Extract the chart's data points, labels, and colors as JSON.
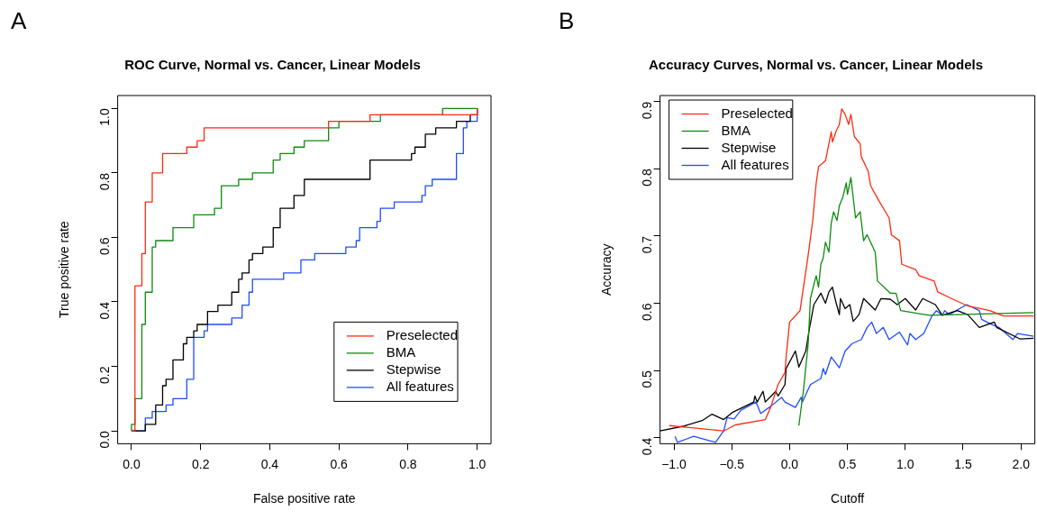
{
  "chart_data": [
    {
      "type": "line",
      "title": "ROC Curve, Normal vs. Cancer, Linear Models",
      "xlabel": "False positive rate",
      "ylabel": "True positive rate",
      "annotations": [
        "A"
      ],
      "xlim": [
        -0.04,
        1.04
      ],
      "ylim": [
        -0.04,
        1.04
      ],
      "xticks": [
        {
          "value": 0,
          "label": "0.0"
        },
        0.2,
        0.4,
        0.6,
        0.8,
        {
          "value": 1,
          "label": "1.0"
        }
      ],
      "yticks": [
        {
          "value": 0,
          "label": "0.0"
        },
        0.2,
        0.4,
        0.6,
        0.8,
        {
          "value": 1,
          "label": "1.0"
        }
      ],
      "grid": false,
      "legend": "bottom right",
      "series": [
        {
          "name": "Preselected",
          "color": "#ff2a12",
          "x": [
            0,
            0.01,
            0.01,
            0.03,
            0.03,
            0.04,
            0.04,
            0.06,
            0.06,
            0.09,
            0.09,
            0.16,
            0.16,
            0.19,
            0.19,
            0.21,
            0.21,
            0.57,
            0.57,
            0.69,
            0.69,
            1.0,
            1.0
          ],
          "values": [
            0,
            0,
            0.45,
            0.45,
            0.55,
            0.55,
            0.71,
            0.71,
            0.8,
            0.8,
            0.86,
            0.86,
            0.88,
            0.88,
            0.9,
            0.9,
            0.94,
            0.94,
            0.96,
            0.96,
            0.98,
            0.98,
            1.0
          ]
        },
        {
          "name": "BMA",
          "color": "#0e8a0e",
          "x": [
            0,
            0,
            0.01,
            0.01,
            0.03,
            0.03,
            0.04,
            0.04,
            0.06,
            0.06,
            0.07,
            0.07,
            0.12,
            0.12,
            0.18,
            0.18,
            0.24,
            0.24,
            0.26,
            0.26,
            0.31,
            0.31,
            0.35,
            0.35,
            0.41,
            0.41,
            0.43,
            0.43,
            0.47,
            0.47,
            0.5,
            0.5,
            0.57,
            0.57,
            0.6,
            0.6,
            0.72,
            0.72,
            0.9,
            0.9,
            1.0
          ],
          "values": [
            0,
            0.02,
            0.02,
            0.1,
            0.1,
            0.33,
            0.33,
            0.43,
            0.43,
            0.57,
            0.57,
            0.59,
            0.59,
            0.63,
            0.63,
            0.67,
            0.67,
            0.69,
            0.69,
            0.76,
            0.76,
            0.78,
            0.78,
            0.8,
            0.8,
            0.84,
            0.84,
            0.86,
            0.86,
            0.88,
            0.88,
            0.9,
            0.9,
            0.94,
            0.94,
            0.96,
            0.96,
            0.98,
            0.98,
            1.0,
            1.0
          ]
        },
        {
          "name": "Stepwise",
          "color": "#000000",
          "x": [
            0,
            0.04,
            0.04,
            0.07,
            0.07,
            0.09,
            0.09,
            0.1,
            0.1,
            0.12,
            0.12,
            0.15,
            0.15,
            0.16,
            0.16,
            0.18,
            0.18,
            0.19,
            0.19,
            0.22,
            0.22,
            0.25,
            0.25,
            0.29,
            0.29,
            0.31,
            0.31,
            0.32,
            0.32,
            0.34,
            0.34,
            0.35,
            0.35,
            0.38,
            0.38,
            0.41,
            0.41,
            0.43,
            0.43,
            0.47,
            0.47,
            0.5,
            0.5,
            0.69,
            0.69,
            0.81,
            0.81,
            0.82,
            0.82,
            0.85,
            0.85,
            0.88,
            0.88,
            0.94,
            0.94,
            0.98,
            0.98,
            1.0,
            1.0
          ],
          "values": [
            0,
            0,
            0.02,
            0.02,
            0.08,
            0.08,
            0.14,
            0.14,
            0.16,
            0.16,
            0.22,
            0.22,
            0.27,
            0.27,
            0.29,
            0.29,
            0.31,
            0.31,
            0.33,
            0.33,
            0.37,
            0.37,
            0.39,
            0.39,
            0.43,
            0.43,
            0.47,
            0.47,
            0.49,
            0.49,
            0.53,
            0.53,
            0.55,
            0.55,
            0.57,
            0.57,
            0.63,
            0.63,
            0.69,
            0.69,
            0.73,
            0.73,
            0.78,
            0.78,
            0.84,
            0.84,
            0.86,
            0.86,
            0.88,
            0.88,
            0.92,
            0.92,
            0.94,
            0.94,
            0.96,
            0.96,
            0.98,
            0.98,
            1.0
          ]
        },
        {
          "name": "All features",
          "color": "#1f4cff",
          "x": [
            0,
            0.04,
            0.04,
            0.06,
            0.06,
            0.1,
            0.1,
            0.12,
            0.12,
            0.16,
            0.16,
            0.18,
            0.18,
            0.21,
            0.21,
            0.22,
            0.22,
            0.29,
            0.29,
            0.32,
            0.32,
            0.34,
            0.34,
            0.35,
            0.35,
            0.44,
            0.44,
            0.49,
            0.49,
            0.53,
            0.53,
            0.62,
            0.62,
            0.65,
            0.65,
            0.66,
            0.66,
            0.71,
            0.71,
            0.72,
            0.72,
            0.76,
            0.76,
            0.84,
            0.84,
            0.85,
            0.85,
            0.87,
            0.87,
            0.94,
            0.94,
            0.96,
            0.96,
            0.97,
            0.97,
            1.0,
            1.0
          ],
          "values": [
            0,
            0,
            0.04,
            0.04,
            0.06,
            0.06,
            0.08,
            0.08,
            0.1,
            0.1,
            0.16,
            0.16,
            0.29,
            0.29,
            0.31,
            0.31,
            0.33,
            0.33,
            0.35,
            0.35,
            0.39,
            0.39,
            0.43,
            0.43,
            0.47,
            0.47,
            0.49,
            0.49,
            0.53,
            0.53,
            0.55,
            0.55,
            0.57,
            0.57,
            0.59,
            0.59,
            0.63,
            0.63,
            0.65,
            0.65,
            0.69,
            0.69,
            0.71,
            0.71,
            0.73,
            0.73,
            0.76,
            0.76,
            0.78,
            0.78,
            0.86,
            0.86,
            0.94,
            0.94,
            0.96,
            0.96,
            1.0
          ]
        }
      ]
    },
    {
      "type": "line",
      "title": "Accuracy Curves, Normal vs. Cancer, Linear Models",
      "xlabel": "Cutoff",
      "ylabel": "Accuracy",
      "annotations": [
        "B"
      ],
      "xlim": [
        -1.12,
        2.12
      ],
      "ylim": [
        0.391,
        0.909
      ],
      "xticks": [
        {
          "value": -1.0,
          "label": "−1.0"
        },
        {
          "value": -0.5,
          "label": "−0.5"
        },
        {
          "value": 0,
          "label": "0.0"
        },
        0.5,
        {
          "value": 1,
          "label": "1.0"
        },
        1.5,
        {
          "value": 2,
          "label": "2.0"
        }
      ],
      "yticks": [
        0.4,
        0.5,
        0.6,
        0.7,
        0.8,
        0.9
      ],
      "grid": false,
      "legend": "top left",
      "series": [
        {
          "name": "Preselected",
          "color": "#ff2a12",
          "x": [
            -1.04,
            -0.57,
            -0.47,
            -0.21,
            -0.16,
            -0.1,
            -0.04,
            -0.03,
            0,
            0.09,
            0.12,
            0.16,
            0.2,
            0.23,
            0.25,
            0.31,
            0.36,
            0.37,
            0.4,
            0.43,
            0.45,
            0.48,
            0.51,
            0.53,
            0.56,
            0.61,
            0.62,
            0.68,
            0.7,
            0.77,
            0.86,
            0.88,
            0.95,
            0.97,
            1.09,
            1.12,
            1.25,
            1.28,
            1.4,
            1.54,
            1.73,
            1.85,
            2.11
          ],
          "values": [
            0.418,
            0.41,
            0.419,
            0.427,
            0.447,
            0.479,
            0.497,
            0.52,
            0.572,
            0.589,
            0.624,
            0.671,
            0.723,
            0.779,
            0.803,
            0.812,
            0.855,
            0.84,
            0.855,
            0.866,
            0.889,
            0.881,
            0.866,
            0.881,
            0.848,
            0.837,
            0.818,
            0.796,
            0.775,
            0.753,
            0.727,
            0.702,
            0.693,
            0.658,
            0.65,
            0.641,
            0.633,
            0.617,
            0.607,
            0.596,
            0.589,
            0.581,
            0.581
          ]
        },
        {
          "name": "BMA",
          "color": "#0e8a0e",
          "x": [
            0.08,
            0.12,
            0.16,
            0.18,
            0.21,
            0.23,
            0.25,
            0.27,
            0.29,
            0.31,
            0.34,
            0.36,
            0.38,
            0.41,
            0.43,
            0.46,
            0.49,
            0.5,
            0.53,
            0.57,
            0.61,
            0.64,
            0.67,
            0.74,
            0.76,
            0.87,
            0.92,
            0.96,
            1.21,
            2.11
          ],
          "values": [
            0.418,
            0.471,
            0.538,
            0.607,
            0.628,
            0.641,
            0.624,
            0.658,
            0.667,
            0.691,
            0.676,
            0.719,
            0.736,
            0.723,
            0.745,
            0.758,
            0.779,
            0.762,
            0.787,
            0.727,
            0.736,
            0.693,
            0.702,
            0.676,
            0.633,
            0.615,
            0.615,
            0.589,
            0.582,
            0.586
          ]
        },
        {
          "name": "Stepwise",
          "color": "#000000",
          "x": [
            -1.12,
            -0.92,
            -0.75,
            -0.67,
            -0.57,
            -0.49,
            -0.31,
            -0.3,
            -0.28,
            -0.23,
            -0.21,
            -0.12,
            -0.1,
            -0.04,
            -0.03,
            0.05,
            0.08,
            0.14,
            0.17,
            0.21,
            0.27,
            0.31,
            0.34,
            0.37,
            0.4,
            0.43,
            0.44,
            0.48,
            0.52,
            0.55,
            0.6,
            0.64,
            0.74,
            0.79,
            0.87,
            0.93,
            1.0,
            1.09,
            1.15,
            1.26,
            1.32,
            1.45,
            1.54,
            1.64,
            1.77,
            1.79,
            1.99,
            2.11
          ],
          "values": [
            0.41,
            0.417,
            0.426,
            0.435,
            0.427,
            0.438,
            0.453,
            0.462,
            0.453,
            0.469,
            0.453,
            0.469,
            0.462,
            0.479,
            0.503,
            0.529,
            0.505,
            0.529,
            0.561,
            0.598,
            0.615,
            0.6,
            0.617,
            0.624,
            0.602,
            0.583,
            0.607,
            0.592,
            0.598,
            0.573,
            0.583,
            0.607,
            0.59,
            0.607,
            0.606,
            0.598,
            0.607,
            0.59,
            0.607,
            0.598,
            0.582,
            0.589,
            0.583,
            0.564,
            0.572,
            0.564,
            0.547,
            0.548
          ]
        },
        {
          "name": "All features",
          "color": "#1f4cff",
          "x": [
            -0.99,
            -0.97,
            -0.83,
            -0.64,
            -0.57,
            -0.54,
            -0.48,
            -0.42,
            -0.29,
            -0.25,
            -0.16,
            -0.07,
            -0.04,
            0.05,
            0.1,
            0.11,
            0.18,
            0.27,
            0.29,
            0.31,
            0.36,
            0.43,
            0.48,
            0.54,
            0.62,
            0.67,
            0.71,
            0.75,
            0.81,
            0.86,
            0.95,
            1.02,
            1.04,
            1.09,
            1.16,
            1.23,
            1.27,
            1.32,
            1.34,
            1.38,
            1.53,
            1.64,
            1.66,
            1.74,
            1.81,
            1.93,
            1.97,
            2.11
          ],
          "values": [
            0.402,
            0.393,
            0.402,
            0.393,
            0.41,
            0.43,
            0.428,
            0.441,
            0.453,
            0.436,
            0.447,
            0.46,
            0.453,
            0.445,
            0.46,
            0.453,
            0.479,
            0.488,
            0.503,
            0.494,
            0.52,
            0.504,
            0.529,
            0.54,
            0.546,
            0.564,
            0.572,
            0.555,
            0.564,
            0.546,
            0.557,
            0.538,
            0.555,
            0.546,
            0.555,
            0.581,
            0.589,
            0.582,
            0.589,
            0.583,
            0.598,
            0.589,
            0.576,
            0.569,
            0.564,
            0.546,
            0.555,
            0.551
          ]
        }
      ]
    }
  ]
}
